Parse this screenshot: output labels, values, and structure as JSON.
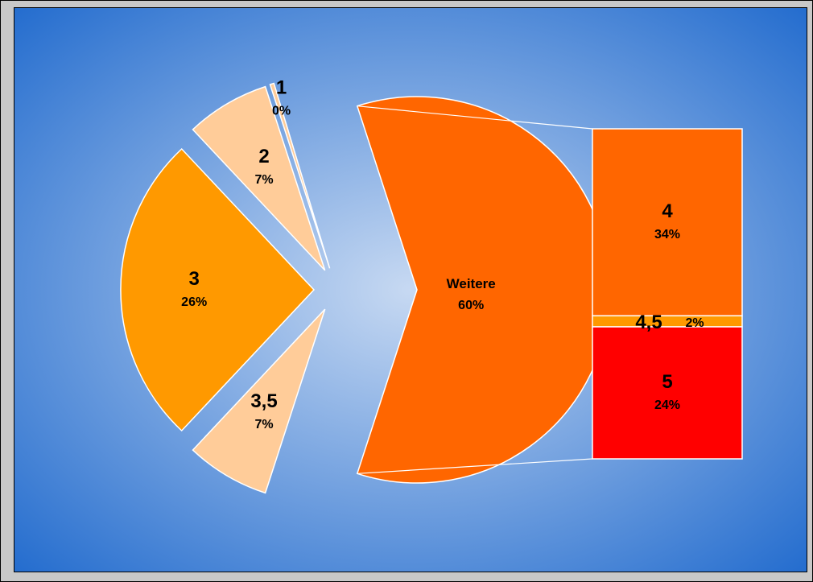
{
  "chart_data": {
    "type": "pie",
    "variant": "bar-of-pie",
    "colors": {
      "background_center": "#c7d9f2",
      "background_edge": "#1a66cc",
      "slice_light": "#ffcc99",
      "slice_orange": "#ff9900",
      "slice_darkorange": "#ff6600",
      "slice_red": "#ff0000"
    },
    "pie_slices": [
      {
        "label": "3,5",
        "percent_label": "7%",
        "value": 7,
        "color": "#ffcc99"
      },
      {
        "label": "3",
        "percent_label": "26%",
        "value": 26,
        "color": "#ff9900"
      },
      {
        "label": "2",
        "percent_label": "7%",
        "value": 7,
        "color": "#ffcc99"
      },
      {
        "label": "1",
        "percent_label": "0%",
        "value": 0,
        "color": "#ffcc99"
      },
      {
        "label": "Weitere",
        "percent_label": "60%",
        "value": 60,
        "color": "#ff6600"
      }
    ],
    "bar_segments": [
      {
        "label": "4",
        "percent_label": "34%",
        "value": 34,
        "color": "#ff6600"
      },
      {
        "label": "4,5",
        "percent_label": "2%",
        "value": 2,
        "color": "#ff9900"
      },
      {
        "label": "5",
        "percent_label": "24%",
        "value": 24,
        "color": "#ff0000"
      }
    ]
  }
}
